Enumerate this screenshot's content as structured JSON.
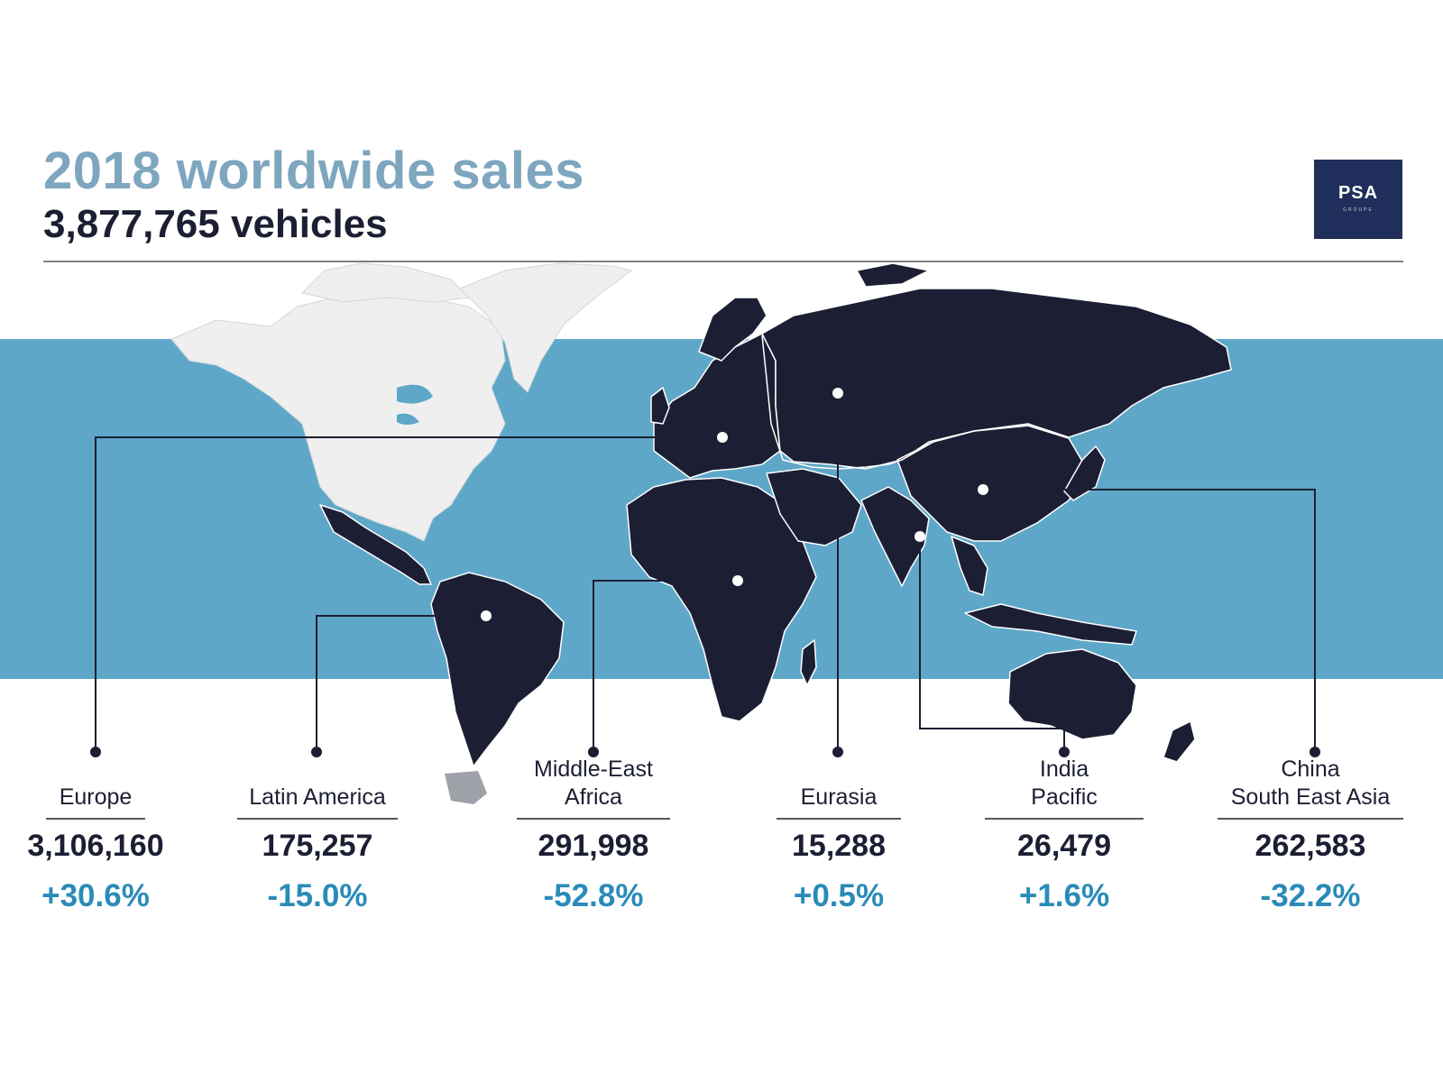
{
  "header": {
    "title": "2018 worldwide sales",
    "subtitle": "3,877,765 vehicles"
  },
  "logo": {
    "text": "PSA",
    "subtext": "GROUPE"
  },
  "colors": {
    "band": "#5ea7c9",
    "land_psa": "#1c1f33",
    "land_other": "#efefef",
    "title": "#7ea6bf",
    "change": "#2a8bb8"
  },
  "regions": [
    {
      "name_lines": [
        "Europe"
      ],
      "value": "3,106,160",
      "change": "+30.6%"
    },
    {
      "name_lines": [
        "Latin America"
      ],
      "value": "175,257",
      "change": "-15.0%"
    },
    {
      "name_lines": [
        "Middle-East",
        "Africa"
      ],
      "value": "291,998",
      "change": "-52.8%"
    },
    {
      "name_lines": [
        "Eurasia"
      ],
      "value": "15,288",
      "change": "+0.5%"
    },
    {
      "name_lines": [
        "India",
        "Pacific"
      ],
      "value": "26,479",
      "change": "+1.6%"
    },
    {
      "name_lines": [
        "China",
        "South East Asia"
      ],
      "value": "262,583",
      "change": "-32.2%"
    }
  ]
}
